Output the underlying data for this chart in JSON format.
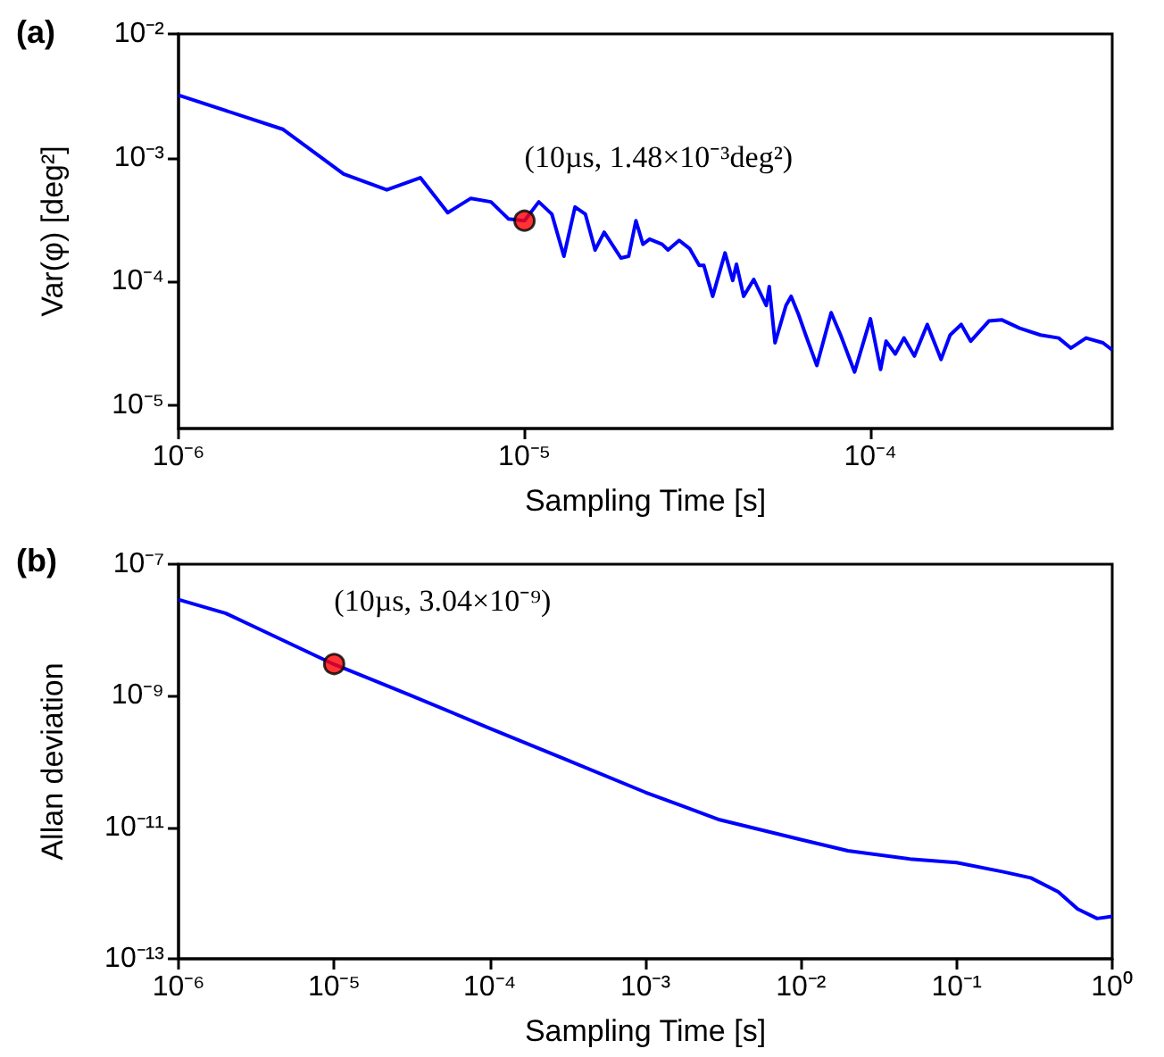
{
  "chart_data": [
    {
      "type": "line",
      "title": "(a)",
      "xlabel": "Sampling Time [s]",
      "ylabel": "Var(φ) [deg²]",
      "log": "xy",
      "grid": false,
      "marker": "none",
      "line_style": "solid",
      "xlim": [
        1e-06,
        0.0005
      ],
      "ylim": [
        6.5e-06,
        0.01
      ],
      "xticks": [
        {
          "value": 1e-06,
          "label": "10⁻⁶"
        },
        {
          "value": 1e-05,
          "label": "10⁻⁵"
        },
        {
          "value": 0.0001,
          "label": "10⁻⁴"
        }
      ],
      "yticks": [
        {
          "value": 1e-05,
          "label": "10⁻⁵"
        },
        {
          "value": 0.0001,
          "label": "10⁻⁴"
        },
        {
          "value": 0.001,
          "label": "10⁻³"
        },
        {
          "value": 0.01,
          "label": "10⁻²"
        }
      ],
      "series": [
        {
          "color": "#0000ff",
          "x": [
            1e-06,
            2e-06,
            3e-06,
            4e-06,
            5e-06,
            6e-06,
            7e-06,
            8e-06,
            9e-06,
            1e-05,
            1.1e-05,
            1.2e-05,
            1.3e-05,
            1.4e-05,
            1.5e-05,
            1.6e-05,
            1.7e-05,
            1.9e-05,
            2e-05,
            2.1e-05,
            2.2e-05,
            2.3e-05,
            2.5e-05,
            2.6e-05,
            2.8e-05,
            3e-05,
            3.2e-05,
            3.3e-05,
            3.5e-05,
            3.8e-05,
            4e-05,
            4.1e-05,
            4.3e-05,
            4.6e-05,
            5e-05,
            5.1e-05,
            5.3e-05,
            5.7e-05,
            5.9e-05,
            6.2e-05,
            6.5e-05,
            7e-05,
            7.7e-05,
            8.2e-05,
            9e-05,
            0.0001,
            0.000107,
            0.000111,
            0.000118,
            0.000125,
            0.000134,
            0.000146,
            0.00016,
            0.00017,
            0.000183,
            0.000195,
            0.00022,
            0.00024,
            0.00027,
            0.00031,
            0.00035,
            0.00038,
            0.00042,
            0.00047,
            0.0005
          ],
          "values": [
            0.0032,
            0.0017,
            0.00074,
            0.00055,
            0.00069,
            0.00036,
            0.00047,
            0.00044,
            0.00032,
            0.00031,
            0.00044,
            0.00035,
            0.00016,
            0.0004,
            0.00035,
            0.00018,
            0.00025,
            0.000155,
            0.00016,
            0.00031,
            0.0002,
            0.00022,
            0.0002,
            0.00018,
            0.000215,
            0.000185,
            0.000135,
            0.000135,
            7.6e-05,
            0.00017,
            0.000102,
            0.000138,
            7.6e-05,
            0.000104,
            6.4e-05,
            9.1e-05,
            3.2e-05,
            6.4e-05,
            7.6e-05,
            5.4e-05,
            3.7e-05,
            2.1e-05,
            5.6e-05,
            3.7e-05,
            1.86e-05,
            5e-05,
            1.95e-05,
            3.3e-05,
            2.6e-05,
            3.5e-05,
            2.5e-05,
            4.5e-05,
            2.35e-05,
            3.7e-05,
            4.5e-05,
            3.3e-05,
            4.8e-05,
            4.9e-05,
            4.2e-05,
            3.7e-05,
            3.5e-05,
            2.9e-05,
            3.5e-05,
            3.2e-05,
            2.8e-05
          ]
        },
        {
          "type": "scatter",
          "color": "#ff0000",
          "marker": "circle",
          "x": [
            1e-05
          ],
          "values": [
            0.00031
          ]
        }
      ],
      "annotations": [
        {
          "text": "(10µs, 1.48×10⁻³deg²)",
          "x": 1e-05,
          "y": 0.00031
        }
      ]
    },
    {
      "type": "line",
      "title": "(b)",
      "xlabel": "Sampling Time [s]",
      "ylabel": "Allan deviation",
      "log": "xy",
      "grid": false,
      "marker": "none",
      "line_style": "solid",
      "xlim": [
        1e-06,
        1
      ],
      "ylim": [
        1e-13,
        1e-07
      ],
      "xticks": [
        {
          "value": 1e-06,
          "label": "10⁻⁶"
        },
        {
          "value": 1e-05,
          "label": "10⁻⁵"
        },
        {
          "value": 0.0001,
          "label": "10⁻⁴"
        },
        {
          "value": 0.001,
          "label": "10⁻³"
        },
        {
          "value": 0.01,
          "label": "10⁻²"
        },
        {
          "value": 0.1,
          "label": "10⁻¹"
        },
        {
          "value": 1,
          "label": "10⁰"
        }
      ],
      "yticks": [
        {
          "value": 1e-13,
          "label": "10⁻¹³"
        },
        {
          "value": 1e-11,
          "label": "10⁻¹¹"
        },
        {
          "value": 1e-09,
          "label": "10⁻⁹"
        },
        {
          "value": 1e-07,
          "label": "10⁻⁷"
        }
      ],
      "series": [
        {
          "color": "#0000ff",
          "x": [
            1e-06,
            2e-06,
            3e-06,
            1e-05,
            3e-05,
            0.0001,
            0.0003,
            0.001,
            0.003,
            0.01,
            0.02,
            0.05,
            0.1,
            0.2,
            0.3,
            0.45,
            0.6,
            0.8,
            1
          ],
          "values": [
            2.9e-08,
            1.8e-08,
            1.15e-08,
            3e-09,
            1.05e-09,
            3.2e-10,
            1.1e-10,
            3.4e-11,
            1.3e-11,
            6.5e-12,
            4.4e-12,
            3.3e-12,
            2.9e-12,
            2.1e-12,
            1.7e-12,
            1.04e-12,
            5.7e-13,
            4.1e-13,
            4.4e-13
          ]
        },
        {
          "type": "scatter",
          "color": "#ff0000",
          "marker": "circle",
          "x": [
            1e-05
          ],
          "values": [
            3.04e-09
          ]
        }
      ],
      "annotations": [
        {
          "text": "(10µs, 3.04×10⁻⁹)",
          "x": 1e-05,
          "y": 3.04e-09
        }
      ]
    }
  ]
}
